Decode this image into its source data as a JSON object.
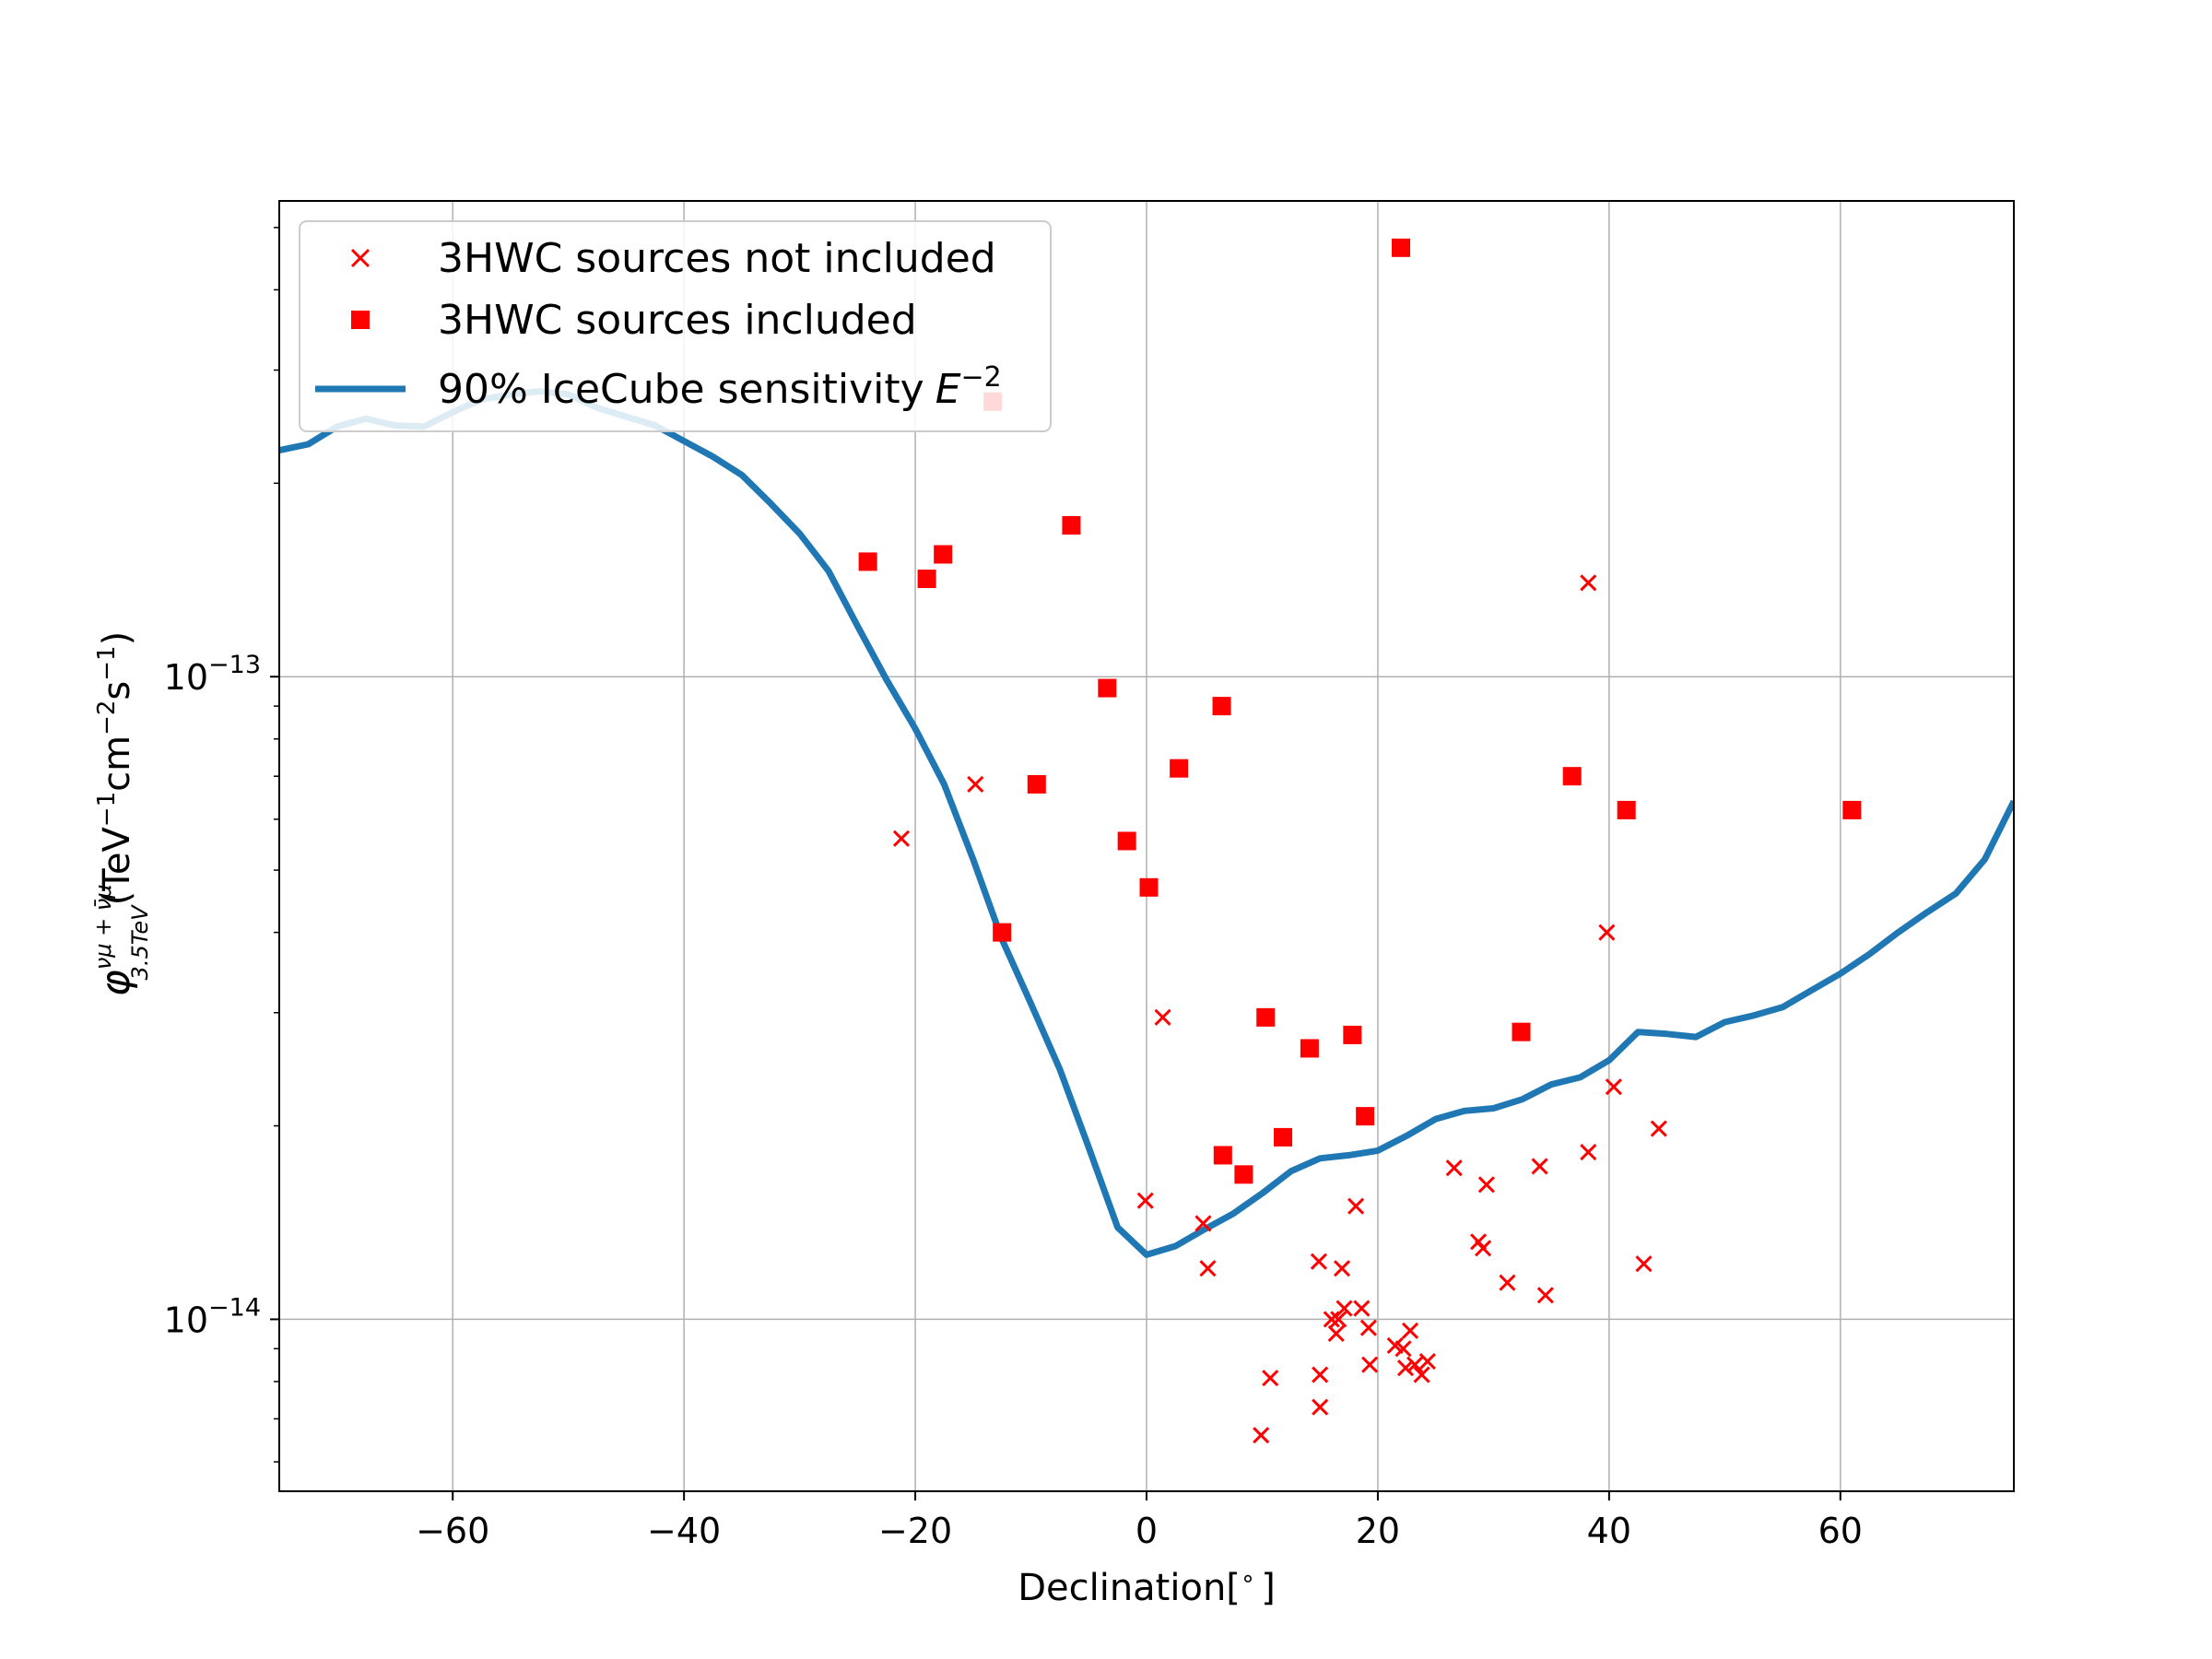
{
  "chart_data": {
    "type": "scatter",
    "title": "",
    "xlabel": "Declination[°]",
    "xlabel_parts": {
      "main": "Declination[",
      "sup": "∘",
      "end": "]"
    },
    "ylabel": "φ_{3.5TeV}^{ν_μ+ν̄_μ}(TeV⁻¹cm⁻²s⁻¹)",
    "ylabel_parts": {
      "phi": "φ",
      "sup": "νμ + ν̄μ",
      "sub": "3.5TeV",
      "unit_a": "(TeV",
      "exp_a": "−1",
      "unit_b": "cm",
      "exp_b": "−2",
      "unit_c": "s",
      "exp_c": "−1",
      "unit_d": ")"
    },
    "xlim": [
      -75,
      75
    ],
    "ylim": [
      5.4e-15,
      5.5e-13
    ],
    "yscale": "log",
    "grid": true,
    "legend_position": "top-left",
    "x_ticks": [
      {
        "value": -60,
        "label": "−60"
      },
      {
        "value": -40,
        "label": "−40"
      },
      {
        "value": -20,
        "label": "−20"
      },
      {
        "value": 0,
        "label": "0"
      },
      {
        "value": 20,
        "label": "20"
      },
      {
        "value": 40,
        "label": "40"
      },
      {
        "value": 60,
        "label": "60"
      }
    ],
    "y_ticks": [
      {
        "value": 1e-13,
        "base": "10",
        "exp": "−13"
      },
      {
        "value": 1e-14,
        "base": "10",
        "exp": "−14"
      }
    ],
    "colors": {
      "sensitivity": "#1f77b4",
      "sources": "#ff0000",
      "grid": "#b0b0b0"
    },
    "series": [
      {
        "name": "3HWC sources not included",
        "marker": "x",
        "points": [
          [
            -14.8,
            6.8e-14
          ],
          [
            -21.2,
            5.6e-14
          ],
          [
            38.2,
            1.4e-13
          ],
          [
            39.8,
            4e-14
          ],
          [
            1.4,
            2.95e-14
          ],
          [
            40.4,
            2.3e-14
          ],
          [
            44.3,
            1.98e-14
          ],
          [
            38.2,
            1.82e-14
          ],
          [
            26.6,
            1.72e-14
          ],
          [
            34.0,
            1.73e-14
          ],
          [
            29.4,
            1.62e-14
          ],
          [
            -0.1,
            1.53e-14
          ],
          [
            18.1,
            1.5e-14
          ],
          [
            4.9,
            1.41e-14
          ],
          [
            28.7,
            1.32e-14
          ],
          [
            29.1,
            1.29e-14
          ],
          [
            14.9,
            1.23e-14
          ],
          [
            16.9,
            1.2e-14
          ],
          [
            5.3,
            1.2e-14
          ],
          [
            43.0,
            1.22e-14
          ],
          [
            31.2,
            1.14e-14
          ],
          [
            34.5,
            1.09e-14
          ],
          [
            16.0,
            1e-14
          ],
          [
            16.6,
            1e-14
          ],
          [
            17.1,
            1.04e-14
          ],
          [
            18.6,
            1.04e-14
          ],
          [
            16.4,
            9.5e-15
          ],
          [
            19.2,
            9.7e-15
          ],
          [
            21.5,
            9.1e-15
          ],
          [
            22.2,
            9e-15
          ],
          [
            22.8,
            9.6e-15
          ],
          [
            19.3,
            8.5e-15
          ],
          [
            22.4,
            8.4e-15
          ],
          [
            23.2,
            8.5e-15
          ],
          [
            24.3,
            8.6e-15
          ],
          [
            23.8,
            8.2e-15
          ],
          [
            10.7,
            8.1e-15
          ],
          [
            15.0,
            8.2e-15
          ],
          [
            15.0,
            7.3e-15
          ],
          [
            9.9,
            6.6e-15
          ]
        ]
      },
      {
        "name": "3HWC sources included",
        "marker": "square",
        "points": [
          [
            22.0,
            4.65e-13
          ],
          [
            -13.3,
            2.68e-13
          ],
          [
            -6.5,
            1.72e-13
          ],
          [
            -24.1,
            1.51e-13
          ],
          [
            -17.6,
            1.55e-13
          ],
          [
            -19.0,
            1.42e-13
          ],
          [
            -3.4,
            9.6e-14
          ],
          [
            6.5,
            9e-14
          ],
          [
            2.8,
            7.2e-14
          ],
          [
            -9.5,
            6.8e-14
          ],
          [
            36.8,
            7e-14
          ],
          [
            41.5,
            6.2e-14
          ],
          [
            61.0,
            6.2e-14
          ],
          [
            -1.7,
            5.55e-14
          ],
          [
            0.2,
            4.7e-14
          ],
          [
            -12.5,
            4e-14
          ],
          [
            10.3,
            2.95e-14
          ],
          [
            17.8,
            2.77e-14
          ],
          [
            32.4,
            2.8e-14
          ],
          [
            14.1,
            2.64e-14
          ],
          [
            18.9,
            2.07e-14
          ],
          [
            11.8,
            1.92e-14
          ],
          [
            6.6,
            1.8e-14
          ],
          [
            8.4,
            1.68e-14
          ]
        ]
      },
      {
        "name": "90% IceCube sensitivity",
        "name_suffix": {
          "base": "E",
          "exp": "−2"
        },
        "marker": "line",
        "points": [
          [
            -75,
            2.25e-13
          ],
          [
            -72.5,
            2.3e-13
          ],
          [
            -70,
            2.45e-13
          ],
          [
            -67.5,
            2.52e-13
          ],
          [
            -65,
            2.46e-13
          ],
          [
            -62.5,
            2.45e-13
          ],
          [
            -60,
            2.58e-13
          ],
          [
            -57.5,
            2.7e-13
          ],
          [
            -55,
            2.75e-13
          ],
          [
            -52.5,
            2.78e-13
          ],
          [
            -50,
            2.75e-13
          ],
          [
            -47.5,
            2.62e-13
          ],
          [
            -42.5,
            2.46e-13
          ],
          [
            -37.5,
            2.2e-13
          ],
          [
            -35,
            2.06e-13
          ],
          [
            -32.5,
            1.86e-13
          ],
          [
            -30,
            1.67e-13
          ],
          [
            -27.5,
            1.46e-13
          ],
          [
            -25,
            1.2e-13
          ],
          [
            -22.5,
            9.9e-14
          ],
          [
            -20,
            8.3e-14
          ],
          [
            -17.5,
            6.8e-14
          ],
          [
            -15,
            5.2e-14
          ],
          [
            -12.5,
            3.9e-14
          ],
          [
            -10,
            3.1e-14
          ],
          [
            -7.5,
            2.45e-14
          ],
          [
            -5,
            1.85e-14
          ],
          [
            -2.5,
            1.39e-14
          ],
          [
            0,
            1.26e-14
          ],
          [
            2.5,
            1.3e-14
          ],
          [
            5,
            1.38e-14
          ],
          [
            7.5,
            1.46e-14
          ],
          [
            10,
            1.57e-14
          ],
          [
            12.5,
            1.7e-14
          ],
          [
            15,
            1.78e-14
          ],
          [
            17.5,
            1.8e-14
          ],
          [
            20,
            1.83e-14
          ],
          [
            22.5,
            1.93e-14
          ],
          [
            25,
            2.05e-14
          ],
          [
            27.5,
            2.11e-14
          ],
          [
            30,
            2.13e-14
          ],
          [
            32.5,
            2.2e-14
          ],
          [
            35,
            2.32e-14
          ],
          [
            37.5,
            2.38e-14
          ],
          [
            40,
            2.53e-14
          ],
          [
            42.5,
            2.8e-14
          ],
          [
            45,
            2.78e-14
          ],
          [
            47.5,
            2.75e-14
          ],
          [
            50,
            2.9e-14
          ],
          [
            52.5,
            2.97e-14
          ],
          [
            55,
            3.06e-14
          ],
          [
            57.5,
            3.25e-14
          ],
          [
            60,
            3.45e-14
          ],
          [
            62.5,
            3.7e-14
          ],
          [
            65,
            4e-14
          ],
          [
            67.5,
            4.3e-14
          ],
          [
            70,
            4.6e-14
          ],
          [
            72.5,
            5.2e-14
          ],
          [
            75,
            6.4e-14
          ]
        ]
      }
    ]
  }
}
